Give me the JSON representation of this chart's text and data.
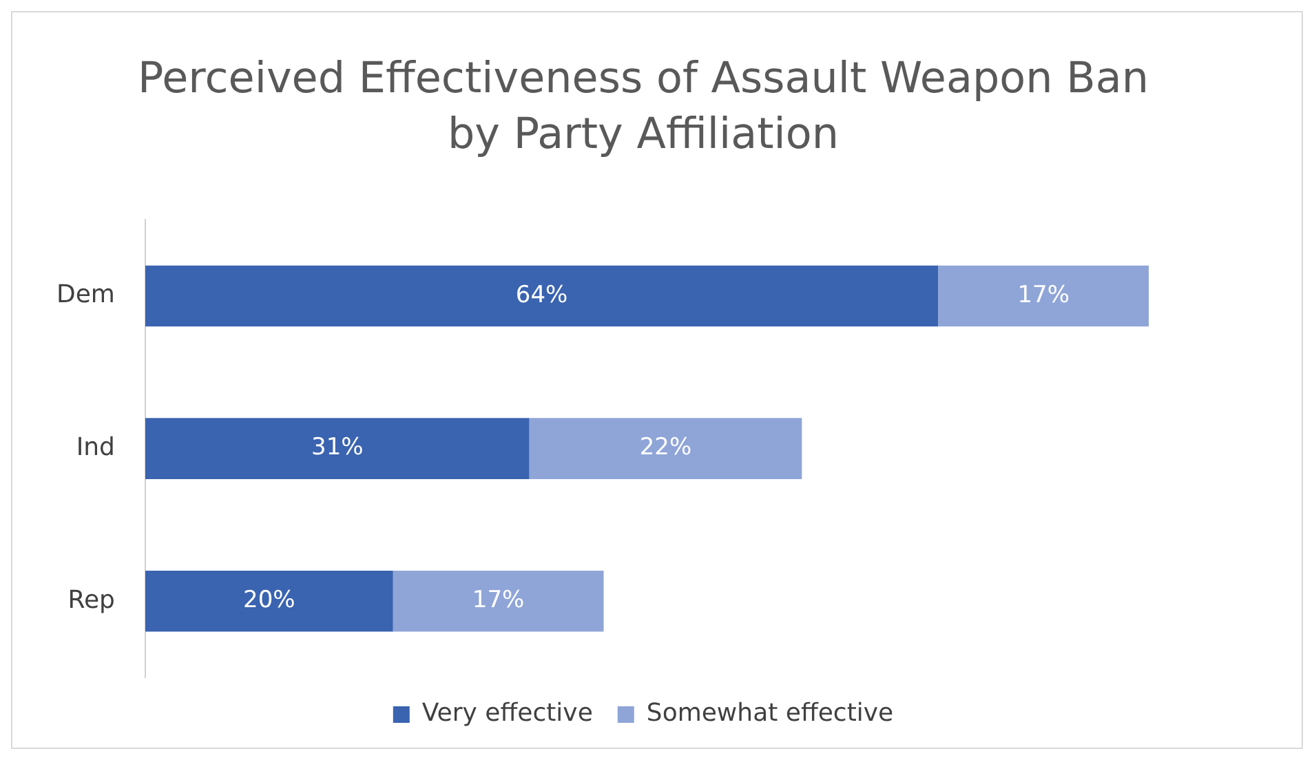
{
  "chart_data": {
    "type": "bar",
    "title": "Perceived Effectiveness of Assault Weapon Ban by Party Affiliation",
    "orientation": "horizontal",
    "stacked": true,
    "categories": [
      "Dem",
      "Ind",
      "Rep"
    ],
    "series": [
      {
        "name": "Very effective",
        "color": "#3a63b0",
        "values": [
          64,
          31,
          20
        ],
        "value_labels": [
          "64%",
          "31%",
          "20%"
        ]
      },
      {
        "name": "Somewhat effective",
        "color": "#8fa5d8",
        "values": [
          17,
          22,
          17
        ],
        "value_labels": [
          "17%",
          "22%",
          "17%"
        ]
      }
    ],
    "legend": "bottom",
    "grid": false
  }
}
